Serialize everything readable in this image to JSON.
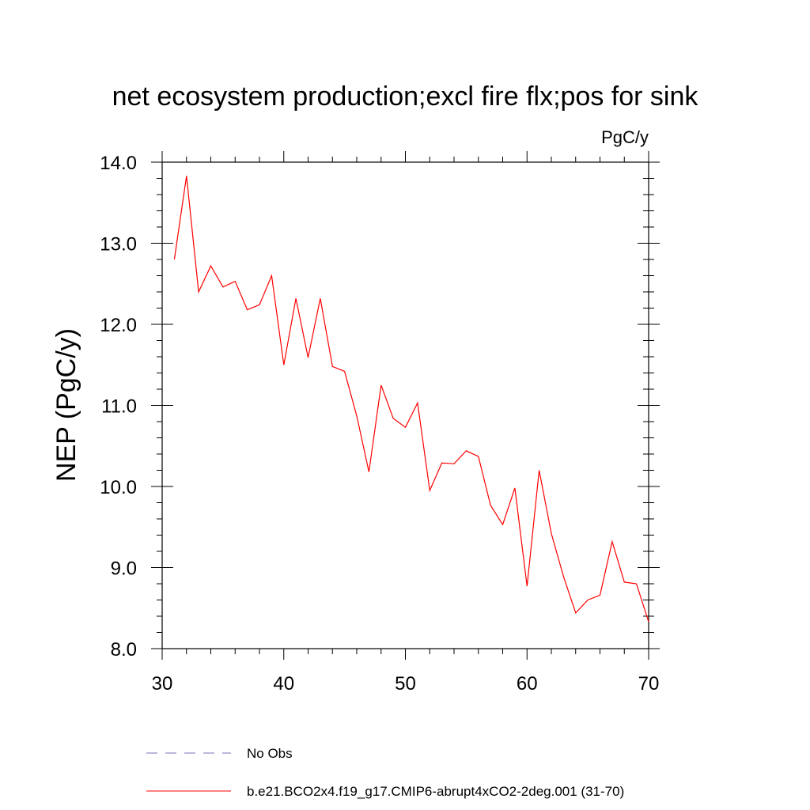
{
  "chart_data": {
    "type": "line",
    "title": "net ecosystem production;excl fire flx;pos for sink",
    "units": "PgC/y",
    "xlabel": "",
    "ylabel": "NEP  (PgC/y)",
    "xlim": [
      30,
      70
    ],
    "ylim": [
      8.0,
      14.0
    ],
    "xticks": [
      30,
      40,
      50,
      60,
      70
    ],
    "xtick_labels": [
      "30",
      "40",
      "50",
      "60",
      "70"
    ],
    "yticks": [
      8.0,
      9.0,
      10.0,
      11.0,
      12.0,
      13.0,
      14.0
    ],
    "ytick_labels": [
      "8.0",
      "9.0",
      "10.0",
      "11.0",
      "12.0",
      "13.0",
      "14.0"
    ],
    "grid": false,
    "legend_position": "bottom",
    "series": [
      {
        "name": "No Obs",
        "color": "#7b6fb8",
        "style": "dashed",
        "x": [],
        "y": []
      },
      {
        "name": "b.e21.BCO2x4.f19_g17.CMIP6-abrupt4xCO2-2deg.001 (31-70)",
        "color": "#ff0000",
        "style": "solid",
        "x": [
          31,
          32,
          33,
          34,
          35,
          36,
          37,
          38,
          39,
          40,
          41,
          42,
          43,
          44,
          45,
          46,
          47,
          48,
          49,
          50,
          51,
          52,
          53,
          54,
          55,
          56,
          57,
          58,
          59,
          60,
          61,
          62,
          63,
          64,
          65,
          66,
          67,
          68,
          69,
          70
        ],
        "y": [
          12.8,
          13.83,
          12.4,
          12.72,
          12.46,
          12.53,
          12.18,
          12.24,
          12.6,
          11.5,
          12.32,
          11.59,
          12.32,
          11.48,
          11.42,
          10.87,
          10.18,
          11.25,
          10.84,
          10.73,
          11.03,
          9.95,
          10.29,
          10.28,
          10.44,
          10.37,
          9.77,
          9.53,
          9.98,
          8.77,
          10.2,
          9.42,
          8.89,
          8.44,
          8.6,
          8.66,
          9.32,
          8.82,
          8.8,
          8.33
        ]
      }
    ]
  }
}
